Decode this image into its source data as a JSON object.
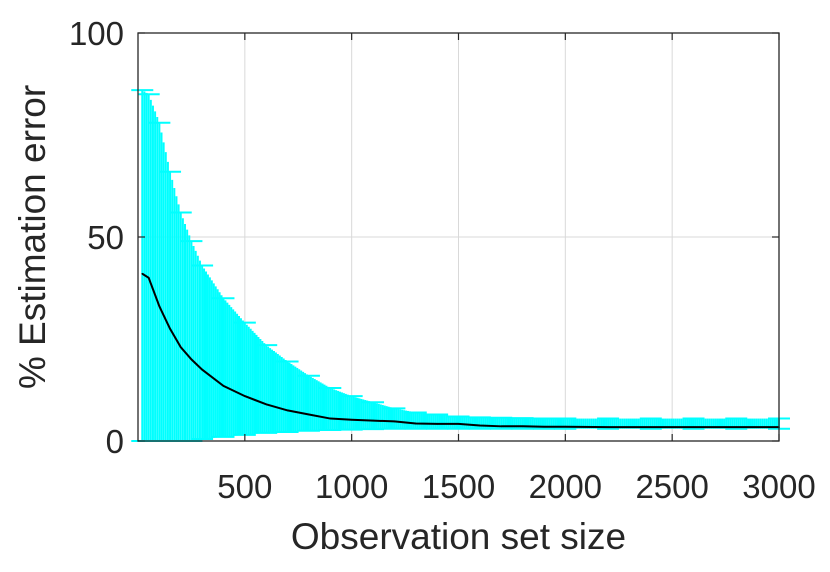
{
  "chart_data": {
    "type": "line",
    "title": "",
    "xlabel": "Observation set size",
    "ylabel": "% Estimation error",
    "xlim": [
      0,
      3000
    ],
    "ylim": [
      0,
      100
    ],
    "xticks": [
      500,
      1000,
      1500,
      2000,
      2500,
      3000
    ],
    "yticks": [
      0,
      50,
      100
    ],
    "grid": true,
    "legend": "none",
    "colors": {
      "mean_line": "#000000",
      "error_bars": "#00ffff",
      "grid": "#d9d9d9",
      "axes": "#262626"
    },
    "series": [
      {
        "kind": "mean-with-error-bars",
        "x": [
          20,
          50,
          100,
          150,
          200,
          250,
          300,
          400,
          500,
          600,
          700,
          800,
          900,
          1000,
          1100,
          1200,
          1300,
          1400,
          1500,
          1600,
          1700,
          1800,
          1900,
          2000,
          2200,
          2400,
          2600,
          2800,
          3000
        ],
        "y": [
          41,
          40,
          33,
          27.5,
          23,
          20,
          17.5,
          13.5,
          11,
          9,
          7.5,
          6.5,
          5.5,
          5.2,
          5,
          4.8,
          4.3,
          4.2,
          4.2,
          3.8,
          3.6,
          3.6,
          3.5,
          3.5,
          3.4,
          3.4,
          3.4,
          3.4,
          3.4
        ],
        "upper": [
          86,
          85,
          78,
          66,
          56,
          49,
          43,
          35,
          29,
          23.5,
          19.5,
          16,
          13,
          11,
          9.5,
          8,
          7,
          6.5,
          6,
          5.8,
          5.7,
          5.6,
          5.5,
          5.5,
          5.5,
          5.5,
          5.5,
          5.5,
          5.5
        ],
        "lower": [
          0,
          0,
          0,
          0,
          0,
          0,
          0.5,
          1,
          1.5,
          2,
          2.2,
          2.5,
          2.7,
          2.8,
          2.9,
          3,
          3,
          3,
          3,
          3,
          3,
          3,
          3,
          3,
          3,
          3,
          3,
          3,
          3
        ]
      }
    ]
  }
}
